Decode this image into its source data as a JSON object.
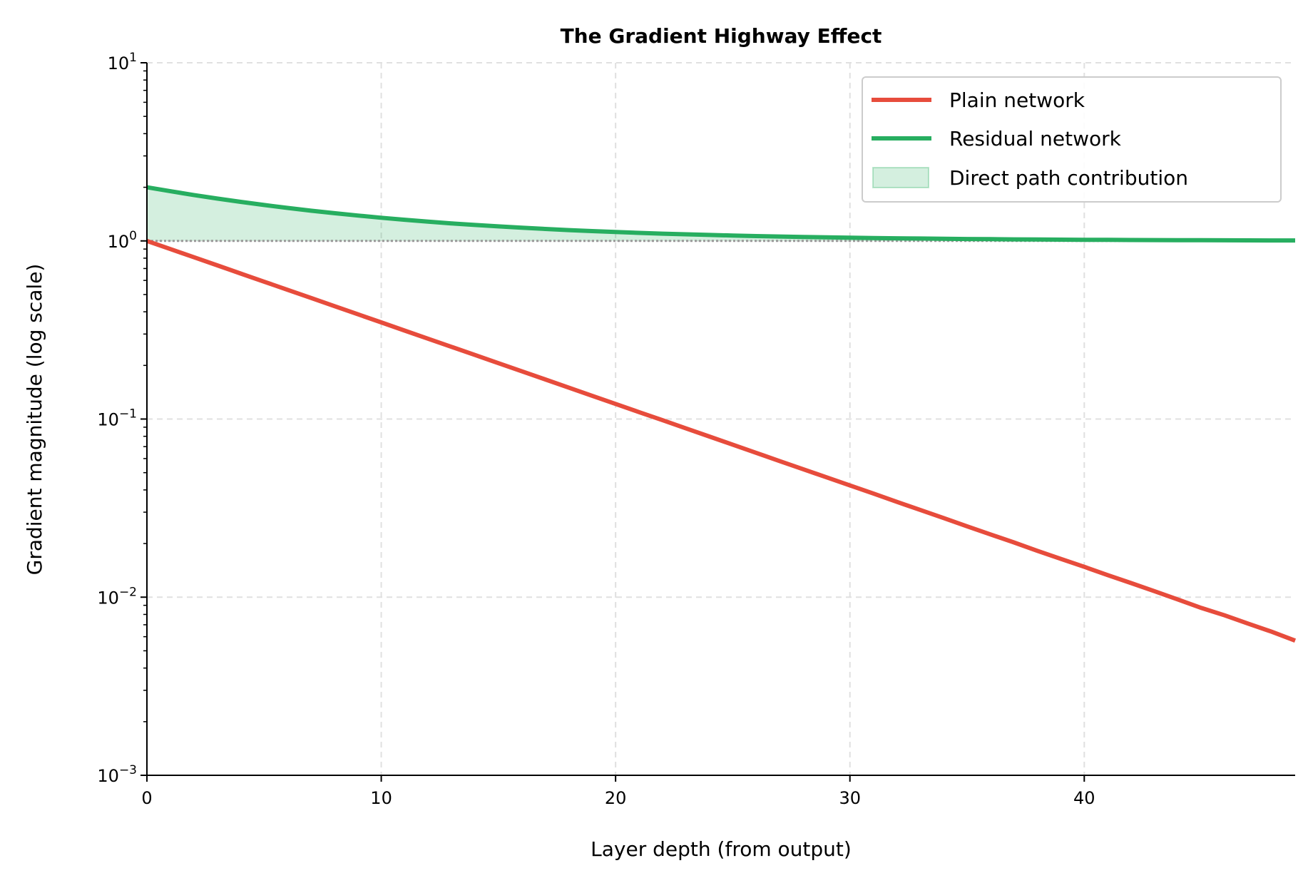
{
  "chart_data": {
    "type": "line",
    "title": "The Gradient Highway Effect",
    "xlabel": "Layer depth (from output)",
    "ylabel": "Gradient magnitude (log scale)",
    "xlim": [
      0,
      49
    ],
    "ylim": [
      0.001,
      10
    ],
    "yscale": "log",
    "grid": true,
    "legend_placement": "upper right",
    "x_ticks": [
      "0",
      "10",
      "20",
      "30",
      "40"
    ],
    "x_tick_values": [
      0,
      10,
      20,
      30,
      40
    ],
    "y_tick_values": [
      0.001,
      0.01,
      0.1,
      1,
      10
    ],
    "y_ticks": [
      {
        "base": "10",
        "exp": "−3"
      },
      {
        "base": "10",
        "exp": "−2"
      },
      {
        "base": "10",
        "exp": "−1"
      },
      {
        "base": "10",
        "exp": "0"
      },
      {
        "base": "10",
        "exp": "1"
      }
    ],
    "x": [
      0,
      1,
      2,
      3,
      4,
      5,
      6,
      7,
      8,
      9,
      10,
      11,
      12,
      13,
      14,
      15,
      16,
      17,
      18,
      19,
      20,
      21,
      22,
      23,
      24,
      25,
      26,
      27,
      28,
      29,
      30,
      31,
      32,
      33,
      34,
      35,
      36,
      37,
      38,
      39,
      40,
      41,
      42,
      43,
      44,
      45,
      46,
      47,
      48,
      49
    ],
    "series": [
      {
        "name": "Plain network",
        "color": "#e74c3c",
        "values": [
          1,
          0.9,
          0.81,
          0.729,
          0.6561,
          0.5905,
          0.5314,
          0.4783,
          0.4305,
          0.3874,
          0.3487,
          0.3138,
          0.2824,
          0.2542,
          0.2288,
          0.2059,
          0.1853,
          0.1668,
          0.1501,
          0.1351,
          0.1216,
          0.1094,
          0.0985,
          0.0886,
          0.0798,
          0.0718,
          0.0646,
          0.0581,
          0.0523,
          0.0471,
          0.0424,
          0.0382,
          0.0343,
          0.0309,
          0.0278,
          0.025,
          0.0225,
          0.0203,
          0.0182,
          0.0164,
          0.0148,
          0.0133,
          0.012,
          0.0108,
          0.0097,
          0.0087,
          0.0079,
          0.0071,
          0.0064,
          0.0057
        ]
      },
      {
        "name": "Residual network",
        "color": "#27ae60",
        "values": [
          2,
          1.9,
          1.81,
          1.729,
          1.6561,
          1.5905,
          1.5314,
          1.4783,
          1.4305,
          1.3874,
          1.3487,
          1.3138,
          1.2824,
          1.2542,
          1.2288,
          1.2059,
          1.1853,
          1.1668,
          1.1501,
          1.1351,
          1.1216,
          1.1094,
          1.0985,
          1.0886,
          1.0798,
          1.0718,
          1.0646,
          1.0581,
          1.0523,
          1.0471,
          1.0424,
          1.0382,
          1.0343,
          1.0309,
          1.0278,
          1.025,
          1.0225,
          1.0203,
          1.0182,
          1.0164,
          1.0148,
          1.0133,
          1.012,
          1.0108,
          1.0097,
          1.0087,
          1.0079,
          1.0071,
          1.0064,
          1.0057
        ]
      }
    ],
    "fill": {
      "name": "Direct path contribution",
      "between": [
        1,
        "Residual network"
      ],
      "color": "#27ae60",
      "opacity": 0.2
    },
    "reference_line": {
      "y": 1,
      "style": "dotted",
      "color": "#999999"
    }
  }
}
